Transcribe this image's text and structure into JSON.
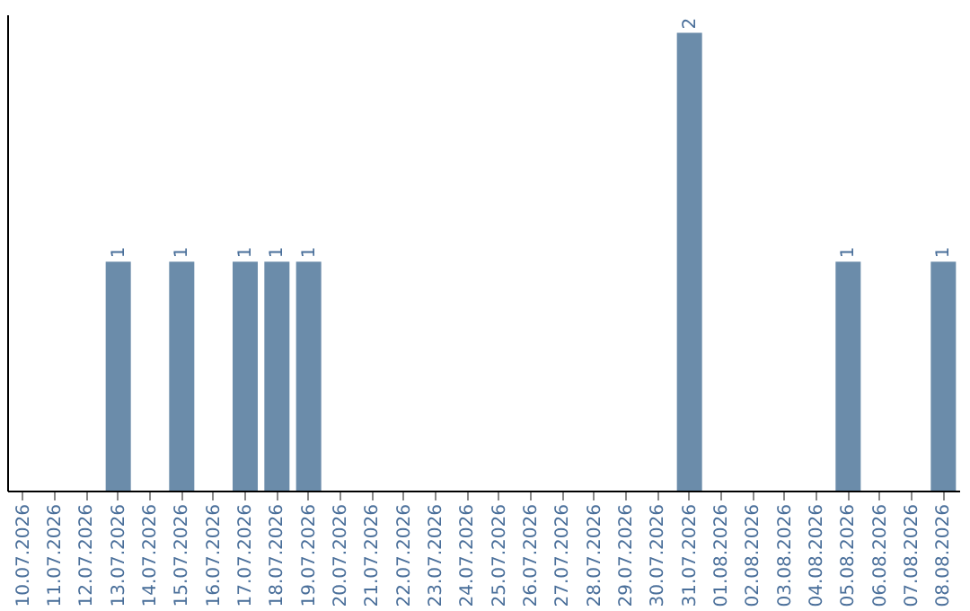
{
  "chart_data": {
    "type": "bar",
    "categories": [
      "10.07.2026",
      "11.07.2026",
      "12.07.2026",
      "13.07.2026",
      "14.07.2026",
      "15.07.2026",
      "16.07.2026",
      "17.07.2026",
      "18.07.2026",
      "19.07.2026",
      "20.07.2026",
      "21.07.2026",
      "22.07.2026",
      "23.07.2026",
      "24.07.2026",
      "25.07.2026",
      "26.07.2026",
      "27.07.2026",
      "28.07.2026",
      "29.07.2026",
      "30.07.2026",
      "31.07.2026",
      "01.08.2026",
      "02.08.2026",
      "03.08.2026",
      "04.08.2026",
      "05.08.2026",
      "06.08.2026",
      "07.08.2026",
      "08.08.2026"
    ],
    "values": [
      0,
      0,
      0,
      1,
      0,
      1,
      0,
      1,
      1,
      1,
      0,
      0,
      0,
      0,
      0,
      0,
      0,
      0,
      0,
      0,
      0,
      2,
      0,
      0,
      0,
      0,
      1,
      0,
      0,
      1
    ],
    "value_labels": [
      null,
      null,
      null,
      "1",
      null,
      "1",
      null,
      "1",
      "1",
      "1",
      null,
      null,
      null,
      null,
      null,
      null,
      null,
      null,
      null,
      null,
      null,
      "2",
      null,
      null,
      null,
      null,
      "1",
      null,
      null,
      "1"
    ],
    "color": "#6b8caa",
    "tick_labels": "x",
    "grid": false
  }
}
